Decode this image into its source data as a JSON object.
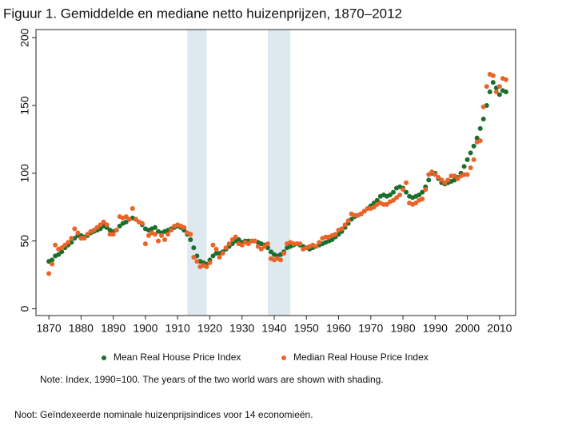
{
  "chart_data": {
    "type": "scatter",
    "title": "Figuur 1. Gemiddelde en mediane netto huizenprijzen, 1870–2012",
    "note": "Note: Index, 1990=100. The years of the two world wars are shown with shading.",
    "footnote": "Noot: Geïndexeerde nominale huizenprijsindices voor 14 economieën.",
    "x": [
      1870,
      1871,
      1872,
      1873,
      1874,
      1875,
      1876,
      1877,
      1878,
      1879,
      1880,
      1881,
      1882,
      1883,
      1884,
      1885,
      1886,
      1887,
      1888,
      1889,
      1890,
      1891,
      1892,
      1893,
      1894,
      1895,
      1896,
      1897,
      1898,
      1899,
      1900,
      1901,
      1902,
      1903,
      1904,
      1905,
      1906,
      1907,
      1908,
      1909,
      1910,
      1911,
      1912,
      1913,
      1914,
      1915,
      1916,
      1917,
      1918,
      1919,
      1920,
      1921,
      1922,
      1923,
      1924,
      1925,
      1926,
      1927,
      1928,
      1929,
      1930,
      1931,
      1932,
      1933,
      1934,
      1935,
      1936,
      1937,
      1938,
      1939,
      1940,
      1941,
      1942,
      1943,
      1944,
      1945,
      1946,
      1947,
      1948,
      1949,
      1950,
      1951,
      1952,
      1953,
      1954,
      1955,
      1956,
      1957,
      1958,
      1959,
      1960,
      1961,
      1962,
      1963,
      1964,
      1965,
      1966,
      1967,
      1968,
      1969,
      1970,
      1971,
      1972,
      1973,
      1974,
      1975,
      1976,
      1977,
      1978,
      1979,
      1980,
      1981,
      1982,
      1983,
      1984,
      1985,
      1986,
      1987,
      1988,
      1989,
      1990,
      1991,
      1992,
      1993,
      1994,
      1995,
      1996,
      1997,
      1998,
      1999,
      2000,
      2001,
      2002,
      2003,
      2004,
      2005,
      2006,
      2007,
      2008,
      2009,
      2010,
      2011,
      2012
    ],
    "series": [
      {
        "name": "Mean Real House Price Index",
        "color": "#1b6e2c",
        "values": [
          35,
          36,
          39,
          40,
          42,
          45,
          47,
          49,
          52,
          54,
          54,
          53,
          54,
          56,
          57,
          58,
          59,
          61,
          60,
          58,
          57,
          58,
          61,
          63,
          64,
          66,
          67,
          66,
          64,
          62,
          59,
          58,
          59,
          60,
          57,
          56,
          57,
          58,
          59,
          60,
          61,
          60,
          58,
          55,
          51,
          45,
          39,
          35,
          34,
          33,
          36,
          39,
          41,
          41,
          42,
          44,
          46,
          48,
          50,
          51,
          49,
          50,
          50,
          50,
          50,
          49,
          48,
          47,
          45,
          42,
          40,
          39,
          40,
          42,
          45,
          46,
          47,
          48,
          47,
          46,
          45,
          44,
          45,
          46,
          47,
          48,
          49,
          50,
          51,
          53,
          55,
          57,
          60,
          63,
          66,
          68,
          69,
          70,
          72,
          74,
          76,
          78,
          80,
          83,
          84,
          83,
          84,
          86,
          89,
          90,
          89,
          86,
          83,
          82,
          83,
          84,
          86,
          90,
          95,
          100,
          100,
          96,
          93,
          92,
          93,
          94,
          95,
          97,
          100,
          105,
          110,
          115,
          120,
          126,
          133,
          140,
          150,
          160,
          167,
          163,
          158,
          161,
          160
        ]
      },
      {
        "name": "Median Real House Price Index",
        "color": "#ea6329",
        "values": [
          26,
          33,
          47,
          44,
          45,
          47,
          49,
          52,
          59,
          56,
          52,
          52,
          55,
          57,
          58,
          60,
          62,
          64,
          62,
          55,
          55,
          58,
          68,
          67,
          68,
          66,
          74,
          66,
          64,
          63,
          48,
          54,
          56,
          55,
          50,
          54,
          51,
          55,
          58,
          61,
          62,
          61,
          60,
          56,
          55,
          38,
          35,
          31,
          32,
          31,
          34,
          47,
          44,
          38,
          41,
          45,
          48,
          51,
          53,
          48,
          47,
          49,
          48,
          50,
          50,
          46,
          44,
          46,
          48,
          37,
          36,
          37,
          36,
          41,
          48,
          49,
          48,
          48,
          48,
          44,
          45,
          46,
          47,
          46,
          49,
          52,
          53,
          53,
          54,
          55,
          58,
          59,
          62,
          65,
          70,
          69,
          69,
          70,
          72,
          74,
          74,
          75,
          77,
          78,
          77,
          77,
          79,
          80,
          82,
          84,
          88,
          93,
          78,
          77,
          78,
          80,
          81,
          88,
          99,
          101,
          99,
          97,
          95,
          93,
          95,
          98,
          98,
          96,
          98,
          99,
          99,
          104,
          110,
          123,
          124,
          149,
          164,
          173,
          172,
          160,
          164,
          170,
          169
        ]
      }
    ],
    "shaded_periods": [
      [
        1913,
        1919
      ],
      [
        1938,
        1945
      ]
    ],
    "shade_color": "#dde9ee",
    "xlim": [
      1866,
      2015
    ],
    "xticks": [
      1870,
      1880,
      1890,
      1900,
      1910,
      1920,
      1930,
      1940,
      1950,
      1960,
      1970,
      1980,
      1990,
      2000,
      2010
    ],
    "ylim": [
      -5,
      206
    ],
    "yticks": [
      0,
      50,
      100,
      150,
      200
    ],
    "grid": false,
    "legend": "bottom"
  }
}
